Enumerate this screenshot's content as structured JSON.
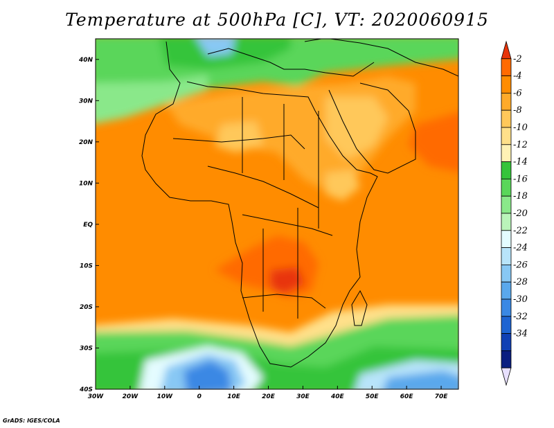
{
  "title": "Temperature at 500hPa [C], VT: 2020060915",
  "credit": "GrADS: IGES/COLA",
  "map": {
    "lon_range": [
      -30,
      75
    ],
    "lat_range": [
      -40,
      45
    ],
    "lon_ticks": [
      {
        "value": -30,
        "label": "30W"
      },
      {
        "value": -20,
        "label": "20W"
      },
      {
        "value": -10,
        "label": "10W"
      },
      {
        "value": 0,
        "label": "0"
      },
      {
        "value": 10,
        "label": "10E"
      },
      {
        "value": 20,
        "label": "20E"
      },
      {
        "value": 30,
        "label": "30E"
      },
      {
        "value": 40,
        "label": "40E"
      },
      {
        "value": 50,
        "label": "50E"
      },
      {
        "value": 60,
        "label": "60E"
      },
      {
        "value": 70,
        "label": "70E"
      }
    ],
    "lat_ticks": [
      {
        "value": 40,
        "label": "40N"
      },
      {
        "value": 30,
        "label": "30N"
      },
      {
        "value": 20,
        "label": "20N"
      },
      {
        "value": 10,
        "label": "10N"
      },
      {
        "value": 0,
        "label": "EQ"
      },
      {
        "value": -10,
        "label": "10S"
      },
      {
        "value": -20,
        "label": "20S"
      },
      {
        "value": -30,
        "label": "30S"
      },
      {
        "value": -40,
        "label": "40S"
      }
    ]
  },
  "colorbar": {
    "labels": [
      "-2",
      "-4",
      "-6",
      "-8",
      "-10",
      "-12",
      "-14",
      "-16",
      "-18",
      "-20",
      "-22",
      "-24",
      "-26",
      "-28",
      "-30",
      "-32",
      "-34"
    ],
    "colors": [
      "#e8340a",
      "#ff6a00",
      "#ff8c00",
      "#ffaa2a",
      "#ffc85a",
      "#ffe08a",
      "#fff2b5",
      "#35c43a",
      "#5ad65a",
      "#8ae88a",
      "#baf4ba",
      "#e4fcff",
      "#b8e4fa",
      "#88c8f4",
      "#5aa8ec",
      "#3a88e4",
      "#1e64d2",
      "#1040b4",
      "#0a1e80",
      "#e8e0ff"
    ]
  }
}
